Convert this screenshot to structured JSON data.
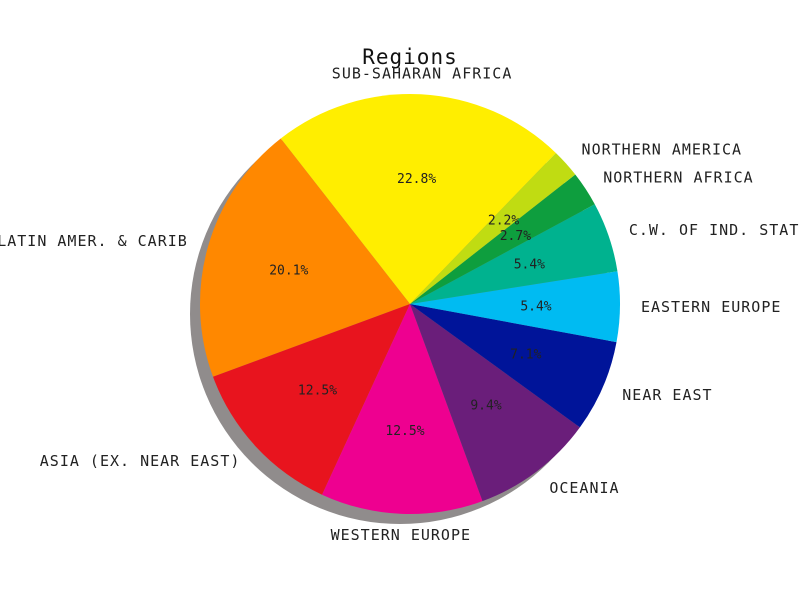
{
  "chart_data": {
    "type": "pie",
    "title": "Regions",
    "categories": [
      "SUB-SAHARAN AFRICA",
      "LATIN AMER. & CARIB",
      "ASIA (EX. NEAR EAST)",
      "WESTERN EUROPE",
      "OCEANIA",
      "NEAR EAST",
      "EASTERN EUROPE",
      "C.W. OF IND. STATES",
      "NORTHERN AFRICA",
      "NORTHERN AMERICA"
    ],
    "values": [
      22.8,
      20.1,
      12.5,
      12.5,
      9.4,
      7.1,
      5.4,
      5.4,
      2.7,
      2.2
    ],
    "value_labels": [
      "22.8%",
      "20.1%",
      "12.5%",
      "12.5%",
      "9.4%",
      "7.1%",
      "5.4%",
      "5.4%",
      "2.7%",
      "2.2%"
    ],
    "colors": [
      "#ffee00",
      "#ff8800",
      "#e8141e",
      "#ee0090",
      "#6a1e7a",
      "#001499",
      "#00bbf2",
      "#00b28f",
      "#0e9e3e",
      "#c0dc12"
    ],
    "start_angle_deg": 46,
    "direction": "counterclockwise",
    "shadow": true
  }
}
